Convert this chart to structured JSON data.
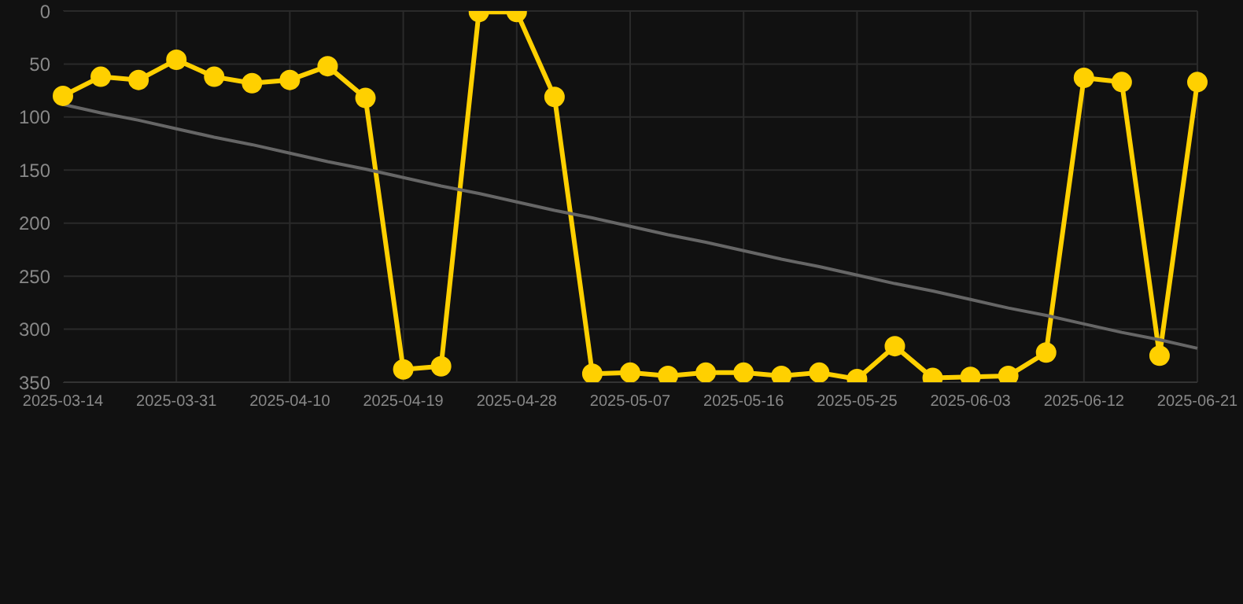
{
  "chart_data": {
    "type": "line",
    "categories": [
      "2025-03-14",
      null,
      null,
      "2025-03-31",
      null,
      null,
      "2025-04-10",
      null,
      null,
      "2025-04-19",
      null,
      null,
      "2025-04-28",
      null,
      null,
      "2025-05-07",
      null,
      null,
      "2025-05-16",
      null,
      null,
      "2025-05-25",
      null,
      null,
      "2025-06-03",
      null,
      null,
      "2025-06-12",
      null,
      null,
      "2025-06-21"
    ],
    "series": [
      {
        "color": "#ffd000",
        "marker": "circle",
        "values": [
          80,
          62,
          65,
          46,
          62,
          68,
          65,
          52,
          82,
          338,
          335,
          1,
          1,
          81,
          342,
          341,
          344,
          341,
          341,
          344,
          341,
          347,
          316,
          346,
          345,
          344,
          322,
          63,
          67,
          325,
          67
        ]
      },
      {
        "type": "line",
        "color": "#666666",
        "marker": "none",
        "values": [
          88,
          96,
          103,
          111,
          119,
          126,
          134,
          142,
          149,
          157,
          165,
          172,
          180,
          188,
          195,
          203,
          211,
          218,
          226,
          234,
          241,
          249,
          257,
          264,
          272,
          280,
          287,
          295,
          303,
          310,
          318
        ]
      }
    ],
    "ylim": [
      350,
      0
    ],
    "yticks": [
      0,
      50,
      100,
      150,
      200,
      250,
      300,
      350
    ],
    "grid": true,
    "legend": false
  }
}
